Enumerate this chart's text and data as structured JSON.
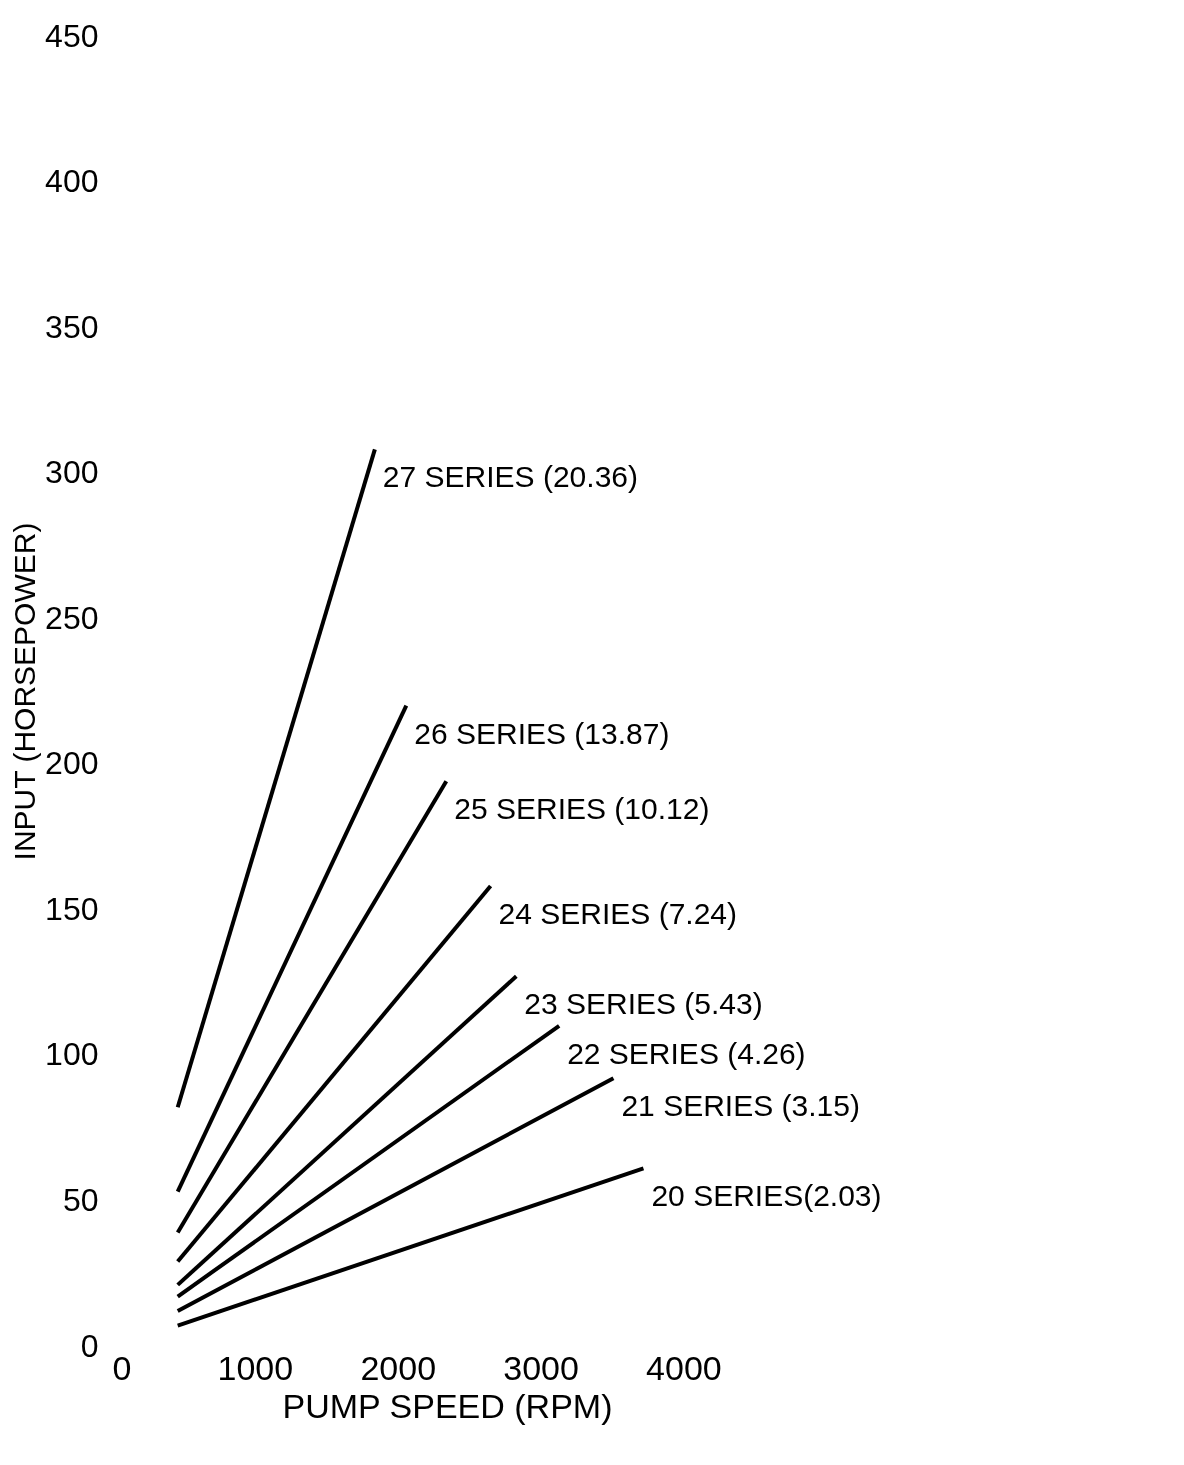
{
  "chart_data": {
    "type": "line",
    "xlabel": "PUMP SPEED (RPM)",
    "ylabel": "INPUT (HORSEPOWER)",
    "xlim": [
      0,
      7000
    ],
    "ylim": [
      0,
      450
    ],
    "xticks": [
      0,
      1000,
      2000,
      3000,
      4000
    ],
    "yticks": [
      0,
      50,
      100,
      150,
      200,
      250,
      300,
      350,
      400,
      450
    ],
    "grid": false,
    "legend": false,
    "marker": "none",
    "line_style": "solid",
    "series": [
      {
        "name": "27 SERIES (20.36)",
        "color": "#000000",
        "x": [
          460,
          1840
        ],
        "values": [
          82,
          308
        ]
      },
      {
        "name": "26 SERIES (13.87)",
        "color": "#000000",
        "x": [
          460,
          2060
        ],
        "values": [
          53,
          220
        ]
      },
      {
        "name": "25 SERIES (10.12)",
        "color": "#000000",
        "x": [
          460,
          2340
        ],
        "values": [
          39,
          194
        ]
      },
      {
        "name": "24 SERIES (7.24)",
        "color": "#000000",
        "x": [
          460,
          2650
        ],
        "values": [
          29,
          158
        ]
      },
      {
        "name": "23 SERIES (5.43)",
        "color": "#000000",
        "x": [
          460,
          2830
        ],
        "values": [
          21,
          127
        ]
      },
      {
        "name": "22 SERIES (4.26)",
        "color": "#000000",
        "x": [
          460,
          3130
        ],
        "values": [
          17,
          110
        ]
      },
      {
        "name": "21 SERIES (3.15)",
        "color": "#000000",
        "x": [
          460,
          3510
        ],
        "values": [
          12,
          92
        ]
      },
      {
        "name": "20 SERIES(2.03)",
        "color": "#000000",
        "x": [
          460,
          3720
        ],
        "values": [
          7,
          61
        ]
      }
    ]
  }
}
